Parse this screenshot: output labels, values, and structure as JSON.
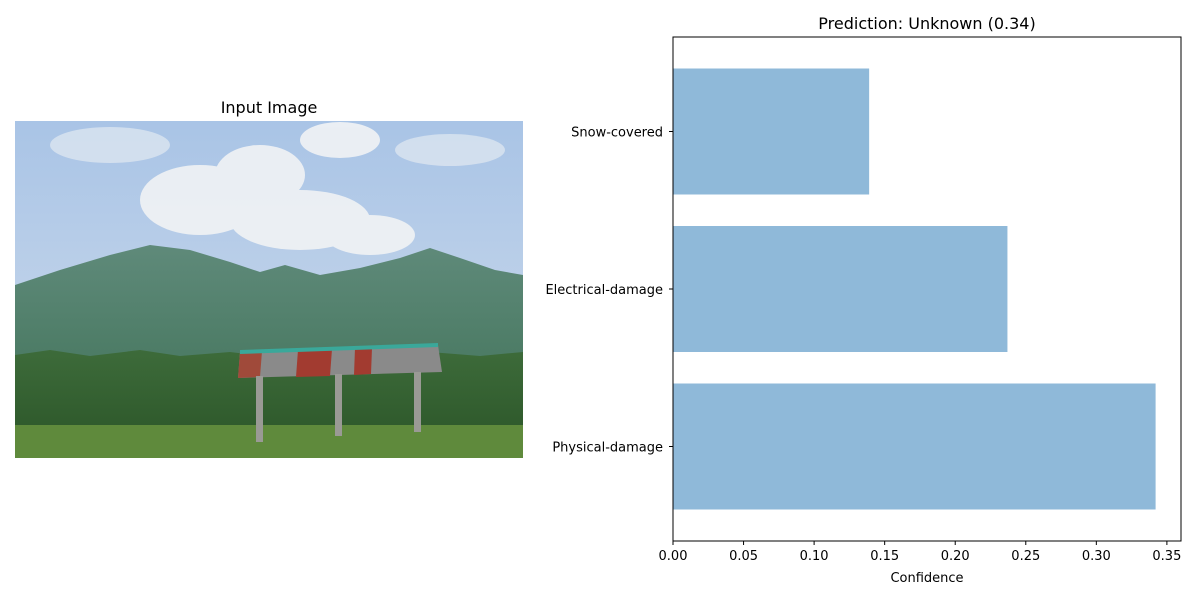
{
  "image_panel": {
    "title": "Input Image"
  },
  "chart_data": {
    "type": "bar",
    "orientation": "horizontal",
    "title": "Prediction: Unknown (0.34)",
    "categories": [
      "Physical-damage",
      "Electrical-damage",
      "Snow-covered"
    ],
    "values": [
      0.342,
      0.237,
      0.139
    ],
    "xlabel": "Confidence",
    "ylabel": "",
    "xlim": [
      0,
      0.36
    ],
    "xticks": [
      0.0,
      0.05,
      0.1,
      0.15,
      0.2,
      0.25,
      0.3,
      0.35
    ],
    "xtick_labels": [
      "0.00",
      "0.05",
      "0.10",
      "0.15",
      "0.20",
      "0.25",
      "0.30",
      "0.35"
    ],
    "bar_color": "#8fb9d9",
    "grid": false,
    "legend": "none"
  }
}
